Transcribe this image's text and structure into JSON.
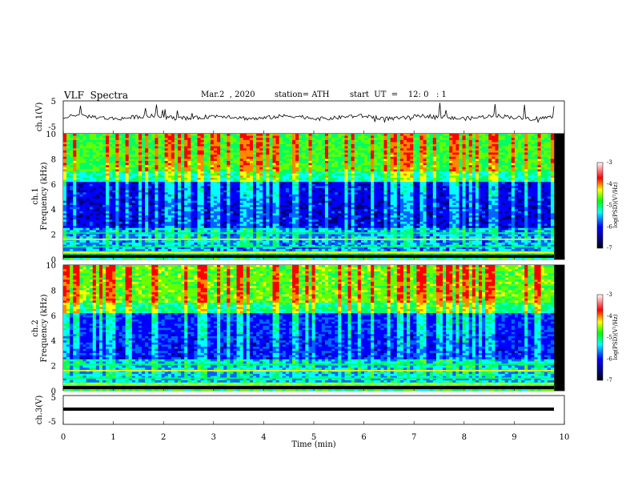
{
  "header": {
    "title": "VLF  Spectra",
    "date": "Mar.2  , 2020",
    "station": "station= ATH",
    "start_ut": "start  UT  =    12: 0   : 1"
  },
  "panels": {
    "ch1_wave": {
      "ylabel": "ch.1(V)",
      "yticks": [
        "5",
        "-5"
      ]
    },
    "ch1_spec": {
      "ylabel_line1": "ch.1",
      "ylabel_line2": "Frequency (kHz)",
      "yticks": [
        "10",
        "8",
        "6",
        "4",
        "2",
        "0"
      ]
    },
    "ch2_spec": {
      "ylabel_line1": "ch.2",
      "ylabel_line2": "Frequency (kHz)",
      "yticks": [
        "10",
        "8",
        "6",
        "4",
        "2",
        "0"
      ]
    },
    "ch3_wave": {
      "ylabel": "ch.3(V)",
      "yticks": [
        "5",
        "-5"
      ]
    }
  },
  "colorbar": {
    "label": "log(PSD)(V²/Hz)",
    "ticks": [
      "-3",
      "-4",
      "-5",
      "-6",
      "-7"
    ],
    "colors": [
      "#ffffff",
      "#ff0000",
      "#ffff00",
      "#00ff00",
      "#00ffff",
      "#0000ff",
      "#000080",
      "#000000"
    ]
  },
  "xaxis": {
    "label": "Time  (min)",
    "ticks": [
      "0",
      "1",
      "2",
      "3",
      "4",
      "5",
      "6",
      "7",
      "8",
      "9",
      "10"
    ]
  },
  "chart_data": [
    {
      "type": "line",
      "title": "",
      "ylabel": "ch.1(V)",
      "xlabel": "",
      "xlim": [
        0,
        10
      ],
      "ylim": [
        -5,
        5
      ],
      "series": [
        {
          "values_note": "noisy waveform near 0 V with spikes",
          "baseline": 0
        }
      ]
    },
    {
      "type": "heatmap",
      "ylabel": "ch.1 Frequency (kHz)",
      "xlim": [
        0,
        10
      ],
      "ylim": [
        0,
        10
      ],
      "colorscale": [
        -7,
        -3
      ]
    },
    {
      "type": "heatmap",
      "ylabel": "ch.2 Frequency (kHz)",
      "xlim": [
        0,
        10
      ],
      "ylim": [
        0,
        10
      ],
      "colorscale": [
        -7,
        -3
      ]
    },
    {
      "type": "line",
      "ylabel": "ch.3(V)",
      "xlabel": "Time  (min)",
      "xlim": [
        0,
        10
      ],
      "ylim": [
        -5,
        5
      ],
      "series": [
        {
          "baseline": 0
        }
      ]
    }
  ]
}
